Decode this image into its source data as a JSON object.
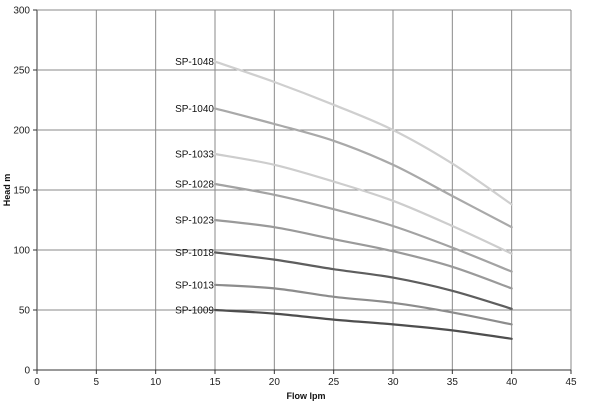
{
  "chart_data": {
    "type": "line",
    "title": "",
    "xlabel": "Flow  lpm",
    "ylabel": "Head  m",
    "xlim": [
      0,
      45
    ],
    "ylim": [
      0,
      300
    ],
    "x_ticks": [
      0,
      5,
      10,
      15,
      20,
      25,
      30,
      35,
      40,
      45
    ],
    "y_ticks": [
      0,
      50,
      100,
      150,
      200,
      250,
      300
    ],
    "grid": true,
    "legend": "inline labels at left end of each curve",
    "x": [
      15,
      20,
      25,
      30,
      35,
      40
    ],
    "series": [
      {
        "name": "SP-1048",
        "color": "#cfcfcf",
        "values": [
          257,
          240,
          221,
          200,
          172,
          138
        ]
      },
      {
        "name": "SP-1040",
        "color": "#a9a9a9",
        "values": [
          218,
          205,
          191,
          171,
          145,
          119
        ]
      },
      {
        "name": "SP-1033",
        "color": "#cdcdcd",
        "values": [
          180,
          171,
          157,
          141,
          120,
          97
        ]
      },
      {
        "name": "SP-1028",
        "color": "#a3a3a3",
        "values": [
          155,
          146,
          134,
          120,
          102,
          82
        ]
      },
      {
        "name": "SP-1023",
        "color": "#9a9a9a",
        "values": [
          125,
          119,
          109,
          99,
          86,
          68
        ]
      },
      {
        "name": "SP-1018",
        "color": "#5e5e5e",
        "values": [
          98,
          92,
          84,
          77,
          66,
          51
        ]
      },
      {
        "name": "SP-1013",
        "color": "#8c8c8c",
        "values": [
          71,
          68,
          61,
          56,
          48,
          38
        ]
      },
      {
        "name": "SP-1009",
        "color": "#4e4e4e",
        "values": [
          50,
          47,
          42,
          38,
          33,
          26
        ]
      }
    ]
  }
}
